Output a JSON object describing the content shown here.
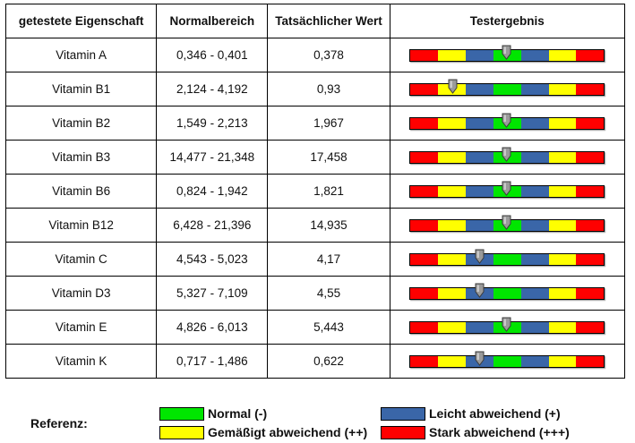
{
  "colors": {
    "red": "#ff0000",
    "yellow": "#ffff00",
    "green": "#00e600",
    "blue": "#3a66a8",
    "marker_fill": "#9a9a9a",
    "marker_stroke": "#3b3b3b"
  },
  "table": {
    "headers": {
      "property": "getestete Eigenschaft",
      "range": "Normalbereich",
      "actual": "Tatsächlicher Wert",
      "result": "Testergebnis"
    },
    "rows": [
      {
        "name": "Vitamin A",
        "range": "0,346 - 0,401",
        "actual": "0,378",
        "marker_position": 0.5
      },
      {
        "name": "Vitamin B1",
        "range": "2,124 - 4,192",
        "actual": "0,93",
        "marker_position": 0.22
      },
      {
        "name": "Vitamin B2",
        "range": "1,549 - 2,213",
        "actual": "1,967",
        "marker_position": 0.5
      },
      {
        "name": "Vitamin B3",
        "range": "14,477 - 21,348",
        "actual": "17,458",
        "marker_position": 0.5
      },
      {
        "name": "Vitamin B6",
        "range": "0,824 - 1,942",
        "actual": "1,821",
        "marker_position": 0.5
      },
      {
        "name": "Vitamin B12",
        "range": "6,428 - 21,396",
        "actual": "14,935",
        "marker_position": 0.5
      },
      {
        "name": "Vitamin C",
        "range": "4,543 - 5,023",
        "actual": "4,17",
        "marker_position": 0.36
      },
      {
        "name": "Vitamin D3",
        "range": "5,327 - 7,109",
        "actual": "4,55",
        "marker_position": 0.36
      },
      {
        "name": "Vitamin E",
        "range": "4,826 - 6,013",
        "actual": "5,443",
        "marker_position": 0.5
      },
      {
        "name": "Vitamin K",
        "range": "0,717 - 1,486",
        "actual": "0,622",
        "marker_position": 0.36
      }
    ]
  },
  "legend": {
    "title": "Referenz:",
    "items": {
      "normal": {
        "label": "Normal (-)",
        "color": "#00e600"
      },
      "moderate": {
        "label": "Gemäßigt abweichend (++)",
        "color": "#ffff00"
      },
      "slight": {
        "label": "Leicht abweichend (+)",
        "color": "#3a66a8"
      },
      "strong": {
        "label": "Stark abweichend (+++)",
        "color": "#ff0000"
      }
    }
  }
}
